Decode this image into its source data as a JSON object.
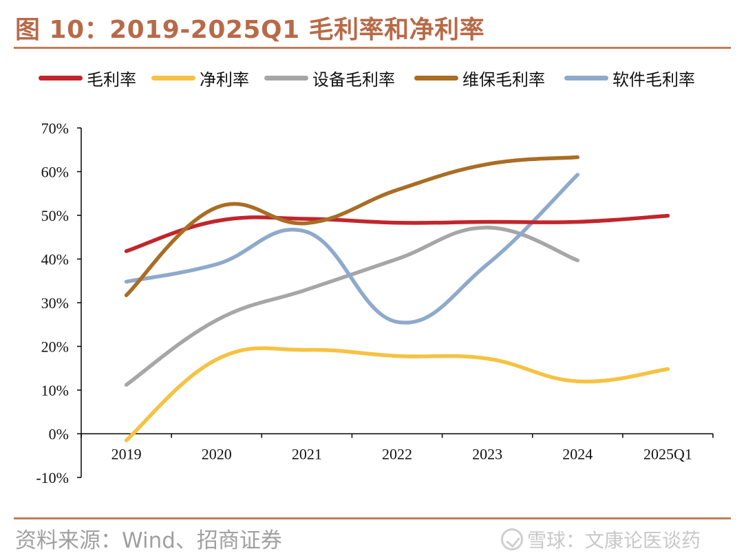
{
  "title": "图 10：2019-2025Q1 毛利率和净利率",
  "footer": {
    "source": "资料来源：Wind、招商证券",
    "watermark": "雪球：文康论医谈药"
  },
  "colors": {
    "title": "#b86a48",
    "rule": "#c57b5a",
    "gross": "#c0262c",
    "net": "#f5c242",
    "equipment": "#a6a6a6",
    "maintenance": "#a96d24",
    "software": "#8ea9cb"
  },
  "chart_data": {
    "type": "line",
    "categories": [
      "2019",
      "2020",
      "2021",
      "2022",
      "2023",
      "2024",
      "2025Q1"
    ],
    "y_tick_labels": [
      "-10%",
      "0%",
      "10%",
      "20%",
      "30%",
      "40%",
      "50%",
      "60%",
      "70%"
    ],
    "ylim": [
      -10,
      70
    ],
    "unit": "%",
    "smooth": true,
    "legend_position": "top",
    "grid": false,
    "series": [
      {
        "name": "毛利率",
        "color": "#c0262c",
        "values": [
          41.8,
          48.7,
          49.2,
          48.3,
          48.5,
          48.5,
          49.9
        ]
      },
      {
        "name": "净利率",
        "color": "#f5c242",
        "values": [
          -1.5,
          17.0,
          19.2,
          17.8,
          17.2,
          12.0,
          14.8
        ]
      },
      {
        "name": "设备毛利率",
        "color": "#a6a6a6",
        "values": [
          11.2,
          26.0,
          33.0,
          40.0,
          47.2,
          39.7,
          null
        ]
      },
      {
        "name": "维保毛利率",
        "color": "#a96d24",
        "values": [
          31.7,
          51.8,
          48.2,
          55.8,
          61.7,
          63.3,
          null
        ]
      },
      {
        "name": "软件毛利率",
        "color": "#8ea9cb",
        "values": [
          34.8,
          38.8,
          46.2,
          25.6,
          38.8,
          59.3,
          null
        ]
      }
    ]
  }
}
